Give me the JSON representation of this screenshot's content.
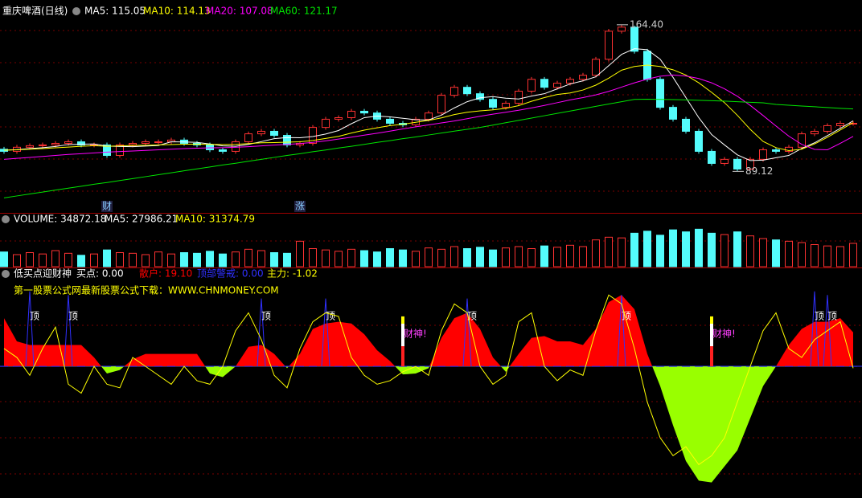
{
  "chart_data": [
    {
      "type": "candlestick",
      "title": "重庆啤酒(日线)",
      "up_color": "#ff3232",
      "down_color": "#54fcfc",
      "ylim": [
        74,
        173
      ],
      "open": [
        100.5,
        99.4,
        101.5,
        102.3,
        102.7,
        103.5,
        104.3,
        102.7,
        102.7,
        97.3,
        102.7,
        103.5,
        104.3,
        104.3,
        105.2,
        103.5,
        102.7,
        100.2,
        99.4,
        104.3,
        108.4,
        109.7,
        107.6,
        102.7,
        103.5,
        111.7,
        115.9,
        116.7,
        120.0,
        119.1,
        115.9,
        113.8,
        113.0,
        115.9,
        119.1,
        128.2,
        132.3,
        129.0,
        126.1,
        122.0,
        124.1,
        130.3,
        136.4,
        132.3,
        134.4,
        136.4,
        138.5,
        146.7,
        161.1,
        163.2,
        150.8,
        136.4,
        122.0,
        115.9,
        109.7,
        99.4,
        93.2,
        95.3,
        90.3,
        95.3,
        100.2,
        99.4,
        101.5,
        108.4,
        109.7,
        112.6,
        113.8
      ],
      "high": [
        101.7,
        102.7,
        103.5,
        103.9,
        104.7,
        105.5,
        105.5,
        103.9,
        103.9,
        103.9,
        104.7,
        105.5,
        105.5,
        106.4,
        106.4,
        104.7,
        103.9,
        101.4,
        105.5,
        109.6,
        110.9,
        110.9,
        108.8,
        104.7,
        112.9,
        117.1,
        117.9,
        121.2,
        121.2,
        120.3,
        117.1,
        115.0,
        117.1,
        120.3,
        129.4,
        133.5,
        133.5,
        130.2,
        127.3,
        125.3,
        131.5,
        137.6,
        137.6,
        135.6,
        137.6,
        139.7,
        147.9,
        162.3,
        164.4,
        164.0,
        152.0,
        137.6,
        123.2,
        117.1,
        110.9,
        100.6,
        96.5,
        96.5,
        96.5,
        101.4,
        101.4,
        102.7,
        109.6,
        110.9,
        113.8,
        115.0,
        115.0
      ],
      "low": [
        98.2,
        98.2,
        100.3,
        101.1,
        101.5,
        102.3,
        101.5,
        101.5,
        96.1,
        96.1,
        101.5,
        102.3,
        103.1,
        103.1,
        102.3,
        101.5,
        99.0,
        98.2,
        98.2,
        103.1,
        107.2,
        106.4,
        101.5,
        101.5,
        102.3,
        110.5,
        114.7,
        115.5,
        117.9,
        114.7,
        112.6,
        111.8,
        111.8,
        114.7,
        117.9,
        127.0,
        127.8,
        124.9,
        120.8,
        120.8,
        122.9,
        129.1,
        131.1,
        131.1,
        133.2,
        135.2,
        137.3,
        145.5,
        159.9,
        149.6,
        135.2,
        120.8,
        114.7,
        108.5,
        98.2,
        92.0,
        92.0,
        89.12,
        89.5,
        94.1,
        98.2,
        98.2,
        100.3,
        107.2,
        108.5,
        111.4,
        112.6
      ],
      "close": [
        99.4,
        101.5,
        102.3,
        102.7,
        103.5,
        104.3,
        102.7,
        102.7,
        97.3,
        102.7,
        103.5,
        104.3,
        104.3,
        105.2,
        103.5,
        102.7,
        100.2,
        99.4,
        104.3,
        108.4,
        109.7,
        107.6,
        102.7,
        103.5,
        111.7,
        115.9,
        116.7,
        120.0,
        119.1,
        115.9,
        113.8,
        113.0,
        115.9,
        119.1,
        128.2,
        132.3,
        129.0,
        126.1,
        122.0,
        124.1,
        130.3,
        136.4,
        132.3,
        134.4,
        136.4,
        138.5,
        146.7,
        161.1,
        163.2,
        150.8,
        136.4,
        122.0,
        115.9,
        109.7,
        99.4,
        93.2,
        95.3,
        90.3,
        95.3,
        100.2,
        99.4,
        101.5,
        108.4,
        109.7,
        112.6,
        113.8,
        113.8
      ],
      "series": [
        {
          "name": "MA5: 115.05",
          "color": "#ffffff",
          "values": [
            100.0,
            100.3,
            100.8,
            101.3,
            101.9,
            102.9,
            103.1,
            103.2,
            102.1,
            101.9,
            101.8,
            102.1,
            102.4,
            104.3,
            104.2,
            104.0,
            103.2,
            102.2,
            102.0,
            103.0,
            104.4,
            105.9,
            106.5,
            106.4,
            107.0,
            108.3,
            110.1,
            113.6,
            116.7,
            117.5,
            117.1,
            116.4,
            115.6,
            115.5,
            118.0,
            121.7,
            124.9,
            126.9,
            127.5,
            126.7,
            126.3,
            127.8,
            129.0,
            131.5,
            134.0,
            135.6,
            137.7,
            143.4,
            149.2,
            152.1,
            151.6,
            146.7,
            137.4,
            127.0,
            116.7,
            108.0,
            102.7,
            97.6,
            94.7,
            94.9,
            96.1,
            97.3,
            100.9,
            103.8,
            107.5,
            111.2,
            115.05
          ]
        },
        {
          "name": "MA10: 114.13",
          "color": "#ffff00",
          "values": [
            100.0,
            100.2,
            100.5,
            100.8,
            101.2,
            101.6,
            102.0,
            102.3,
            102.0,
            102.2,
            102.4,
            102.5,
            102.7,
            102.9,
            103.1,
            103.1,
            103.0,
            102.9,
            103.0,
            103.4,
            103.8,
            103.9,
            104.1,
            104.3,
            105.0,
            106.0,
            107.1,
            108.8,
            110.3,
            111.5,
            112.6,
            113.3,
            114.3,
            115.3,
            116.6,
            118.3,
            119.5,
            120.2,
            120.7,
            121.5,
            122.9,
            125.1,
            127.0,
            128.6,
            129.4,
            130.9,
            133.4,
            137.0,
            141.1,
            143.0,
            143.7,
            143.0,
            141.3,
            138.6,
            134.6,
            129.7,
            124.4,
            117.9,
            110.7,
            104.5,
            101.3,
            99.8,
            100.5,
            103.2,
            106.6,
            110.4,
            114.13
          ]
        },
        {
          "name": "MA20: 107.08",
          "color": "#ff00ff",
          "values": [
            95.3,
            95.8,
            96.3,
            96.8,
            97.3,
            97.8,
            98.2,
            98.6,
            99.0,
            99.3,
            99.6,
            99.9,
            100.2,
            100.5,
            100.8,
            101.0,
            101.2,
            101.3,
            101.5,
            101.8,
            102.2,
            102.6,
            103.0,
            103.4,
            104.0,
            104.8,
            105.7,
            106.7,
            107.7,
            108.7,
            109.8,
            110.9,
            112.0,
            113.0,
            114.0,
            115.0,
            116.2,
            117.4,
            118.5,
            119.5,
            120.5,
            121.7,
            123.0,
            124.4,
            125.8,
            127.0,
            128.4,
            130.2,
            132.4,
            134.6,
            136.5,
            138.0,
            138.6,
            138.1,
            136.8,
            134.6,
            131.5,
            127.7,
            123.0,
            117.8,
            112.4,
            107.2,
            103.0,
            100.4,
            100.2,
            103.5,
            107.08
          ]
        },
        {
          "name": "MA60: 121.17",
          "color": "#00e600",
          "values": [
            75.5,
            76.5,
            77.5,
            78.5,
            79.5,
            80.5,
            81.5,
            82.5,
            83.4,
            84.4,
            85.4,
            86.4,
            87.4,
            88.4,
            89.4,
            90.4,
            91.4,
            92.4,
            93.3,
            94.3,
            95.3,
            96.3,
            97.3,
            98.2,
            99.2,
            100.1,
            101.1,
            102.0,
            103.0,
            104.0,
            104.9,
            105.9,
            106.8,
            107.8,
            108.8,
            109.8,
            110.7,
            111.7,
            112.9,
            114.1,
            115.3,
            116.5,
            117.7,
            118.9,
            120.1,
            121.3,
            122.5,
            123.7,
            124.9,
            126.1,
            126.2,
            126.1,
            126.0,
            125.8,
            125.6,
            125.4,
            125.2,
            124.9,
            124.6,
            124.3,
            123.5,
            123.1,
            122.7,
            122.3,
            121.9,
            121.5,
            121.17
          ]
        }
      ],
      "annotations": [
        {
          "value": 164.4,
          "label": "164.40"
        },
        89.12
      ],
      "event_labels": [
        null,
        null,
        null,
        null,
        null,
        null,
        null,
        null,
        "财",
        null,
        null,
        null,
        null,
        null,
        null,
        null,
        null,
        null,
        null,
        null,
        null,
        null,
        null,
        "涨",
        null,
        null,
        null,
        null,
        null,
        null,
        null,
        null,
        null,
        null,
        null,
        null,
        null,
        null,
        null,
        null,
        null,
        null,
        null,
        null,
        null,
        null,
        null,
        null,
        null,
        null,
        null,
        null,
        null,
        null,
        null,
        null,
        null,
        null,
        null,
        null,
        null,
        null,
        null,
        null,
        null,
        null,
        null
      ]
    },
    {
      "type": "bar",
      "up_color": "#ff3232",
      "down_color": "#54fcfc",
      "ylim": [
        0,
        60000
      ],
      "series": [
        {
          "name": "VOLUME: 34872.18",
          "values": [
            22000,
            18000,
            21000,
            19000,
            24000,
            20000,
            17000,
            19000,
            25000,
            21000,
            20000,
            18000,
            22000,
            19000,
            21000,
            20000,
            23000,
            19000,
            22000,
            26000,
            24000,
            21000,
            20000,
            38000,
            27000,
            25000,
            23000,
            26000,
            24000,
            22000,
            27000,
            25000,
            23000,
            28000,
            26000,
            30000,
            27000,
            29000,
            25000,
            28000,
            30000,
            27000,
            31000,
            29000,
            32000,
            30000,
            40000,
            44000,
            43000,
            50000,
            53000,
            47000,
            55000,
            52000,
            56000,
            50000,
            48000,
            52000,
            46000,
            42000,
            40000,
            38000,
            36000,
            33000,
            31000,
            30000,
            34872.18
          ]
        }
      ],
      "legend_extra": [
        "MA5: 27986.21",
        "MA10: 31374.79"
      ]
    },
    {
      "type": "indicator",
      "title": "低买点迎财神",
      "subtitle": "第一股票公式网最新股票公式下载：WWW.CHNMONEY.COM",
      "ylim": [
        -70,
        50
      ],
      "series": [
        {
          "name": "买点: 0.00",
          "color": "#ffffff",
          "values": [
            0,
            0,
            0,
            0,
            0,
            0,
            0,
            0,
            0,
            0,
            0,
            0,
            0,
            0,
            0,
            0,
            0,
            0,
            0,
            0,
            0,
            0,
            0,
            0,
            0,
            0,
            0,
            0,
            0,
            0,
            0,
            28,
            0,
            0,
            0,
            0,
            0,
            0,
            0,
            0,
            0,
            0,
            0,
            0,
            0,
            0,
            0,
            0,
            0,
            0,
            0,
            0,
            0,
            0,
            0,
            28,
            0,
            0,
            0,
            0,
            0,
            0,
            0,
            0,
            0,
            0,
            0
          ],
          "value_labels": [
            null,
            null,
            null,
            null,
            null,
            null,
            null,
            null,
            null,
            null,
            null,
            null,
            null,
            null,
            null,
            null,
            null,
            null,
            null,
            null,
            null,
            null,
            null,
            null,
            null,
            null,
            null,
            null,
            null,
            null,
            null,
            "财神!",
            null,
            null,
            null,
            null,
            null,
            null,
            null,
            null,
            null,
            null,
            null,
            null,
            null,
            null,
            null,
            null,
            null,
            null,
            null,
            null,
            null,
            null,
            null,
            "财神!",
            null,
            null,
            null,
            null,
            null,
            null,
            null,
            null,
            null,
            null,
            null
          ]
        },
        {
          "name": "散户: 19.10",
          "color": "#ff0000",
          "negative_color": "#99ff00",
          "values": [
            27,
            14,
            12,
            12,
            12,
            12,
            12,
            5,
            -4,
            -2,
            4,
            7,
            7,
            7,
            7,
            7,
            -4,
            -6,
            0,
            11,
            12,
            7,
            -1,
            7,
            21,
            24,
            25,
            24,
            18,
            9,
            3,
            -4.5,
            -4,
            -1,
            16,
            27,
            30,
            21,
            5,
            -3,
            7,
            16,
            17,
            14,
            14,
            12,
            21,
            36,
            40,
            32,
            7,
            -11,
            -33,
            -53,
            -64,
            -65,
            -56,
            -47,
            -29,
            -11,
            0,
            12,
            21,
            25,
            25,
            27,
            19.1
          ]
        },
        {
          "name": "顶部警戒: 0.00",
          "color": "#3030ff",
          "values": [
            0,
            0,
            42,
            0,
            0,
            40,
            0,
            0,
            0,
            0,
            0,
            0,
            0,
            0,
            0,
            0,
            0,
            0,
            0,
            0,
            38,
            0,
            0,
            0,
            0,
            38,
            0,
            0,
            0,
            0,
            0,
            0,
            0,
            0,
            0,
            0,
            38,
            0,
            0,
            0,
            0,
            0,
            0,
            0,
            0,
            0,
            0,
            0,
            40,
            0,
            0,
            0,
            0,
            0,
            0,
            0,
            0,
            0,
            0,
            0,
            0,
            0,
            0,
            42,
            40,
            0,
            0
          ],
          "value_labels": [
            null,
            null,
            "顶",
            null,
            null,
            "顶",
            null,
            null,
            null,
            null,
            null,
            null,
            null,
            null,
            null,
            null,
            null,
            null,
            null,
            null,
            "顶",
            null,
            null,
            null,
            null,
            "顶",
            null,
            null,
            null,
            null,
            null,
            null,
            null,
            null,
            null,
            null,
            "顶",
            null,
            null,
            null,
            null,
            null,
            null,
            null,
            null,
            null,
            null,
            null,
            "顶",
            null,
            null,
            null,
            null,
            null,
            null,
            null,
            null,
            null,
            null,
            null,
            null,
            null,
            null,
            "顶",
            "顶",
            null,
            null
          ]
        },
        {
          "name": "主力: -1.02",
          "color": "#ffff00",
          "values": [
            10,
            5,
            -5,
            10,
            22,
            -10,
            -15,
            0,
            -10,
            -12,
            5,
            0,
            -5,
            -10,
            0,
            -8,
            -10,
            0,
            20,
            30,
            15,
            -5,
            -12,
            10,
            25,
            30,
            28,
            5,
            -5,
            -10,
            -8,
            -3,
            0,
            -5,
            20,
            35,
            30,
            0,
            -10,
            -5,
            25,
            30,
            0,
            -8,
            -2,
            -5,
            20,
            40,
            35,
            10,
            -20,
            -40,
            -50,
            -45,
            -55,
            -50,
            -40,
            -20,
            0,
            20,
            30,
            10,
            5,
            15,
            20,
            25,
            -1.02
          ]
        }
      ]
    }
  ]
}
